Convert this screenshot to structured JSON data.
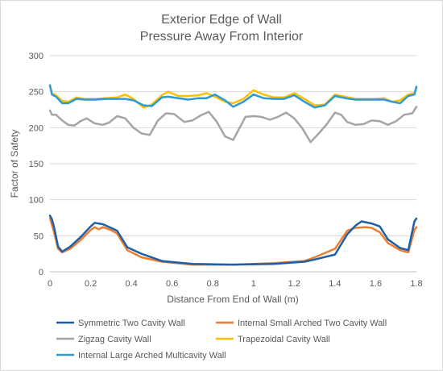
{
  "chart_data": {
    "type": "line",
    "title": "Exterior Edge of Wall",
    "subtitle": "Pressure Away From Interior",
    "xlabel": "Distance From End of Wall (m)",
    "ylabel": "Factor of Safety",
    "xlim": [
      0,
      1.8
    ],
    "ylim": [
      0,
      300
    ],
    "xticks": [
      "0",
      "0.2",
      "0.4",
      "0.6",
      "0.8",
      "1",
      "1.2",
      "1.4",
      "1.6",
      "1.8"
    ],
    "yticks": [
      "0",
      "50",
      "100",
      "150",
      "200",
      "250",
      "300"
    ],
    "grid": "horizontal",
    "legend_position": "bottom",
    "series": [
      {
        "name": "Symmetric Two Cavity Wall",
        "color": "#1f5fa8",
        "x": [
          0,
          0.01,
          0.02,
          0.04,
          0.06,
          0.1,
          0.15,
          0.2,
          0.22,
          0.26,
          0.3,
          0.33,
          0.38,
          0.45,
          0.55,
          0.7,
          0.9,
          1.1,
          1.25,
          1.3,
          1.4,
          1.46,
          1.5,
          1.53,
          1.58,
          1.62,
          1.66,
          1.72,
          1.76,
          1.79,
          1.8
        ],
        "y": [
          78,
          73,
          62,
          35,
          28,
          35,
          48,
          63,
          68,
          66,
          61,
          57,
          34,
          25,
          15,
          11,
          10,
          11,
          14,
          17,
          24,
          52,
          64,
          70,
          67,
          63,
          45,
          33,
          30,
          70,
          74
        ]
      },
      {
        "name": "Internal Small Arched Two Cavity Wall",
        "color": "#ed7d31",
        "x": [
          0,
          0.01,
          0.02,
          0.04,
          0.06,
          0.1,
          0.15,
          0.2,
          0.22,
          0.24,
          0.26,
          0.3,
          0.33,
          0.38,
          0.45,
          0.55,
          0.7,
          0.9,
          1.1,
          1.25,
          1.3,
          1.4,
          1.46,
          1.5,
          1.55,
          1.58,
          1.62,
          1.66,
          1.72,
          1.76,
          1.79,
          1.8
        ],
        "y": [
          75,
          65,
          55,
          32,
          27,
          32,
          44,
          58,
          62,
          59,
          62,
          58,
          53,
          30,
          20,
          14,
          10,
          10,
          12,
          15,
          20,
          32,
          57,
          61,
          62,
          61,
          55,
          40,
          30,
          27,
          58,
          62
        ]
      },
      {
        "name": "Zigzag Cavity Wall",
        "color": "#a5a5a5",
        "x": [
          0,
          0.01,
          0.03,
          0.06,
          0.09,
          0.12,
          0.15,
          0.18,
          0.22,
          0.26,
          0.29,
          0.33,
          0.37,
          0.41,
          0.45,
          0.49,
          0.53,
          0.57,
          0.61,
          0.66,
          0.7,
          0.74,
          0.78,
          0.82,
          0.86,
          0.9,
          0.96,
          1.0,
          1.04,
          1.08,
          1.12,
          1.16,
          1.2,
          1.24,
          1.28,
          1.32,
          1.36,
          1.4,
          1.43,
          1.46,
          1.5,
          1.54,
          1.58,
          1.62,
          1.66,
          1.7,
          1.74,
          1.78,
          1.8
        ],
        "y": [
          224,
          218,
          218,
          210,
          204,
          203,
          209,
          213,
          206,
          204,
          207,
          216,
          213,
          200,
          192,
          190,
          210,
          220,
          219,
          208,
          210,
          217,
          222,
          208,
          188,
          183,
          215,
          216,
          215,
          211,
          215,
          221,
          213,
          199,
          180,
          192,
          205,
          221,
          218,
          208,
          204,
          205,
          210,
          209,
          204,
          209,
          218,
          220,
          229
        ]
      },
      {
        "name": "Trapezoidal Cavity Wall",
        "color": "#ffc000",
        "x": [
          0,
          0.01,
          0.03,
          0.06,
          0.09,
          0.13,
          0.17,
          0.22,
          0.28,
          0.33,
          0.37,
          0.41,
          0.46,
          0.5,
          0.55,
          0.58,
          0.63,
          0.68,
          0.73,
          0.77,
          0.81,
          0.86,
          0.9,
          0.95,
          1.0,
          1.05,
          1.1,
          1.15,
          1.2,
          1.25,
          1.3,
          1.35,
          1.4,
          1.45,
          1.5,
          1.55,
          1.6,
          1.64,
          1.68,
          1.72,
          1.76,
          1.79,
          1.8
        ],
        "y": [
          258,
          248,
          245,
          237,
          236,
          242,
          240,
          240,
          241,
          242,
          246,
          240,
          228,
          232,
          245,
          250,
          244,
          244,
          245,
          248,
          243,
          236,
          234,
          240,
          252,
          246,
          242,
          242,
          248,
          240,
          231,
          232,
          246,
          243,
          240,
          240,
          240,
          241,
          236,
          238,
          246,
          248,
          255
        ]
      },
      {
        "name": "Internal Large Arched Multicavity Wall",
        "color": "#2e9bd6",
        "x": [
          0,
          0.01,
          0.03,
          0.06,
          0.09,
          0.13,
          0.17,
          0.22,
          0.28,
          0.33,
          0.37,
          0.41,
          0.46,
          0.5,
          0.55,
          0.58,
          0.63,
          0.68,
          0.73,
          0.77,
          0.81,
          0.86,
          0.9,
          0.95,
          1.0,
          1.05,
          1.1,
          1.15,
          1.2,
          1.25,
          1.3,
          1.35,
          1.4,
          1.45,
          1.5,
          1.55,
          1.6,
          1.64,
          1.68,
          1.72,
          1.76,
          1.79,
          1.8
        ],
        "y": [
          259,
          246,
          243,
          234,
          234,
          240,
          239,
          239,
          240,
          240,
          240,
          238,
          231,
          230,
          242,
          243,
          241,
          239,
          241,
          241,
          246,
          238,
          229,
          236,
          246,
          241,
          240,
          240,
          245,
          236,
          228,
          231,
          244,
          241,
          239,
          239,
          239,
          239,
          236,
          234,
          244,
          246,
          257
        ]
      }
    ]
  }
}
